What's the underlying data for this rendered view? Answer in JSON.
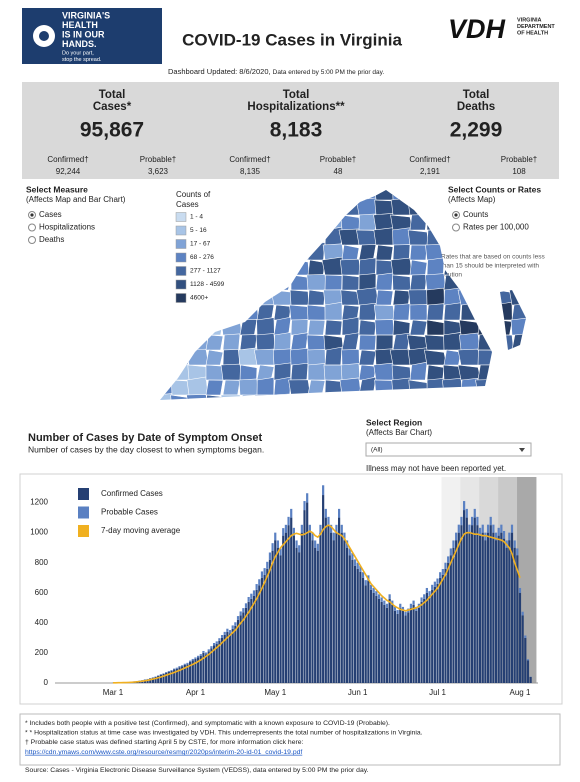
{
  "header": {
    "logo_lines": [
      "VIRGINIA'S",
      "HEALTH",
      "IS IN OUR",
      "HANDS."
    ],
    "logo_tagline": [
      "Do your part,",
      "stop the spread."
    ],
    "title": "COVID-19 Cases in Virginia",
    "agency_abbr": "VDH",
    "agency_name": [
      "VIRGINIA",
      "DEPARTMENT",
      "OF HEALTH"
    ],
    "updated": "Dashboard Updated: 8/6/2020,",
    "updated_note": "Data entered by 5:00 PM the prior day."
  },
  "totals": [
    {
      "label": [
        "Total",
        "Cases*"
      ],
      "value": "95,867",
      "confirmed_label": "Confirmed†",
      "confirmed": "92,244",
      "probable_label": "Probable†",
      "probable": "3,623"
    },
    {
      "label": [
        "Total",
        "Hospitalizations**"
      ],
      "value": "8,183",
      "confirmed_label": "Confirmed†",
      "confirmed": "8,135",
      "probable_label": "Probable†",
      "probable": "48"
    },
    {
      "label": [
        "Total",
        "Deaths"
      ],
      "value": "2,299",
      "confirmed_label": "Confirmed†",
      "confirmed": "2,191",
      "probable_label": "Probable†",
      "probable": "108"
    }
  ],
  "controls": {
    "measure": {
      "title": "Select Measure",
      "subtitle": "(Affects Map and Bar Chart)",
      "options": [
        "Cases",
        "Hospitalizations",
        "Deaths"
      ]
    },
    "counts_legend": {
      "title": [
        "Counts of",
        "Cases"
      ],
      "classes": [
        "1 - 4",
        "5 - 16",
        "17 - 67",
        "68 - 276",
        "277 - 1127",
        "1128 - 4599",
        "4600+"
      ]
    },
    "rates": {
      "title": "Select Counts or Rates",
      "subtitle": "(Affects Map)",
      "options": [
        "Counts",
        "Rates per 100,000"
      ],
      "note": [
        "Rates that are based on counts less",
        "than 15 should be interpreted with",
        "caution"
      ]
    },
    "region": {
      "title": "Select Region",
      "subtitle": "(Affects Bar Chart)",
      "value": "(All)"
    }
  },
  "chart_data": {
    "type": "bar",
    "stacked": true,
    "title": "Number of Cases by Date of Symptom Onset",
    "subtitle": "Number of cases by the day closest to when symptoms began.",
    "annotation": "Illness may not have been reported yet.",
    "categories": [
      "Mar 1",
      null,
      null,
      null,
      null,
      null,
      null,
      null,
      null,
      null,
      null,
      null,
      null,
      null,
      null,
      null,
      null,
      null,
      null,
      null,
      null,
      null,
      null,
      null,
      null,
      null,
      null,
      null,
      null,
      null,
      null,
      "Apr 1",
      null,
      null,
      null,
      null,
      null,
      null,
      null,
      null,
      null,
      null,
      null,
      null,
      null,
      null,
      null,
      null,
      null,
      null,
      null,
      null,
      null,
      null,
      null,
      null,
      null,
      null,
      null,
      null,
      null,
      "May 1",
      null,
      null,
      null,
      null,
      null,
      null,
      null,
      null,
      null,
      null,
      null,
      null,
      null,
      null,
      null,
      null,
      null,
      null,
      null,
      null,
      null,
      null,
      null,
      null,
      null,
      null,
      null,
      null,
      null,
      null,
      "Jun 1",
      null,
      null,
      null,
      null,
      null,
      null,
      null,
      null,
      null,
      null,
      null,
      null,
      null,
      null,
      null,
      null,
      null,
      null,
      null,
      null,
      null,
      null,
      null,
      null,
      null,
      null,
      null,
      null,
      null,
      "Jul 1",
      null,
      null,
      null,
      null,
      null,
      null,
      null,
      null,
      null,
      null,
      null,
      null,
      null,
      null,
      null,
      null,
      null,
      null,
      null,
      null,
      null,
      null,
      null,
      null,
      null,
      null,
      null,
      null,
      null,
      null,
      "Aug 1",
      null,
      null,
      null,
      null
    ],
    "series": [
      {
        "name": "Confirmed Cases",
        "color": "#253f73",
        "values": [
          1,
          0,
          2,
          1,
          3,
          4,
          5,
          8,
          10,
          12,
          15,
          18,
          22,
          25,
          30,
          35,
          40,
          48,
          55,
          60,
          68,
          75,
          80,
          90,
          95,
          105,
          110,
          120,
          125,
          140,
          150,
          160,
          170,
          180,
          200,
          190,
          210,
          230,
          250,
          260,
          280,
          300,
          320,
          340,
          330,
          360,
          380,
          420,
          450,
          470,
          500,
          540,
          560,
          580,
          620,
          650,
          700,
          720,
          760,
          820,
          880,
          950,
          900,
          850,
          980,
          1000,
          1050,
          1100,
          980,
          900,
          870,
          1000,
          1150,
          1200,
          1000,
          950,
          900,
          880,
          1000,
          1250,
          1100,
          1050,
          1000,
          950,
          1000,
          1100,
          1000,
          950,
          900,
          850,
          820,
          780,
          760,
          740,
          700,
          650,
          680,
          620,
          600,
          580,
          560,
          540,
          520,
          500,
          560,
          520,
          480,
          460,
          500,
          480,
          450,
          470,
          500,
          520,
          480,
          500,
          540,
          560,
          600,
          580,
          620,
          640,
          660,
          700,
          720,
          760,
          800,
          850,
          900,
          950,
          1000,
          1050,
          1150,
          1100,
          1000,
          1050,
          1100,
          1050,
          980,
          1000,
          950,
          1000,
          1050,
          1000,
          950,
          980,
          1000,
          960,
          900,
          950,
          1000,
          900,
          850,
          600,
          450,
          300,
          150,
          40
        ]
      },
      {
        "name": "Probable Cases",
        "color": "#5a80c2",
        "values": [
          0,
          0,
          0,
          0,
          0,
          0,
          0,
          1,
          1,
          1,
          1,
          1,
          2,
          2,
          2,
          3,
          3,
          3,
          4,
          4,
          5,
          5,
          6,
          6,
          7,
          7,
          8,
          8,
          9,
          9,
          10,
          10,
          11,
          12,
          13,
          13,
          14,
          15,
          16,
          17,
          18,
          19,
          20,
          21,
          22,
          23,
          24,
          25,
          26,
          28,
          30,
          32,
          34,
          36,
          38,
          40,
          42,
          44,
          46,
          48,
          50,
          50,
          48,
          45,
          50,
          52,
          55,
          58,
          52,
          48,
          46,
          52,
          60,
          62,
          52,
          50,
          48,
          46,
          52,
          65,
          58,
          55,
          52,
          50,
          52,
          58,
          52,
          50,
          48,
          45,
          44,
          42,
          40,
          39,
          37,
          34,
          36,
          33,
          32,
          31,
          30,
          29,
          28,
          27,
          30,
          28,
          26,
          25,
          27,
          26,
          24,
          25,
          27,
          28,
          26,
          27,
          29,
          30,
          32,
          31,
          33,
          34,
          35,
          37,
          38,
          40,
          42,
          45,
          48,
          50,
          53,
          55,
          60,
          58,
          53,
          55,
          58,
          55,
          52,
          53,
          50,
          53,
          55,
          53,
          50,
          52,
          53,
          51,
          48,
          50,
          53,
          48,
          45,
          32,
          24,
          16,
          8,
          2
        ]
      },
      {
        "name": "7-day moving average",
        "color": "#f0b020",
        "type": "line",
        "values": [
          1,
          1,
          2,
          2,
          3,
          3,
          4,
          5,
          6,
          8,
          10,
          12,
          15,
          18,
          22,
          26,
          30,
          35,
          40,
          46,
          52,
          58,
          64,
          70,
          77,
          84,
          92,
          100,
          108,
          116,
          124,
          133,
          143,
          153,
          165,
          178,
          190,
          205,
          220,
          235,
          250,
          268,
          285,
          302,
          318,
          335,
          352,
          375,
          398,
          420,
          445,
          470,
          500,
          530,
          560,
          595,
          630,
          670,
          710,
          750,
          800,
          840,
          870,
          900,
          920,
          940,
          960,
          980,
          990,
          995,
          990,
          985,
          990,
          1000,
          1010,
          1000,
          980,
          970,
          990,
          1020,
          1040,
          1050,
          1040,
          1020,
          1000,
          990,
          980,
          960,
          930,
          900,
          870,
          840,
          810,
          780,
          750,
          720,
          690,
          660,
          640,
          620,
          600,
          580,
          565,
          550,
          540,
          525,
          510,
          500,
          490,
          485,
          480,
          485,
          490,
          495,
          500,
          510,
          520,
          535,
          550,
          570,
          590,
          610,
          630,
          660,
          690,
          720,
          760,
          800,
          840,
          880,
          920,
          960,
          990,
          1000,
          1000,
          995,
          990,
          990,
          985,
          980,
          980,
          975,
          970,
          965,
          960,
          955,
          950,
          940,
          920,
          900,
          860,
          800,
          750,
          700,
          null,
          null,
          null,
          null
        ]
      }
    ],
    "ylim": [
      0,
      1370
    ],
    "yticks": [
      0,
      200,
      400,
      600,
      800,
      1000,
      1200
    ],
    "grid": false
  },
  "footnotes": [
    "* Includes both people with a positive test (Confirmed), and symptomatic with a known exposure to COVID-19 (Probable).",
    "* * Hospitalization status at time case was investigated by VDH. This underrepresents the total number of hospitalizations in Virginia.",
    "† Probable case status was defined starting April 5 by CSTE, for more information click here:"
  ],
  "footnote_link": "https://cdn.ymaws.com/www.cste.org/resource/resmgr/2020ps/interim-20-id-01_covid-19.pdf",
  "source": "Source:  Cases - Virginia Electronic Disease Surveillance System (VEDSS), data entered by 5:00 PM the prior day."
}
